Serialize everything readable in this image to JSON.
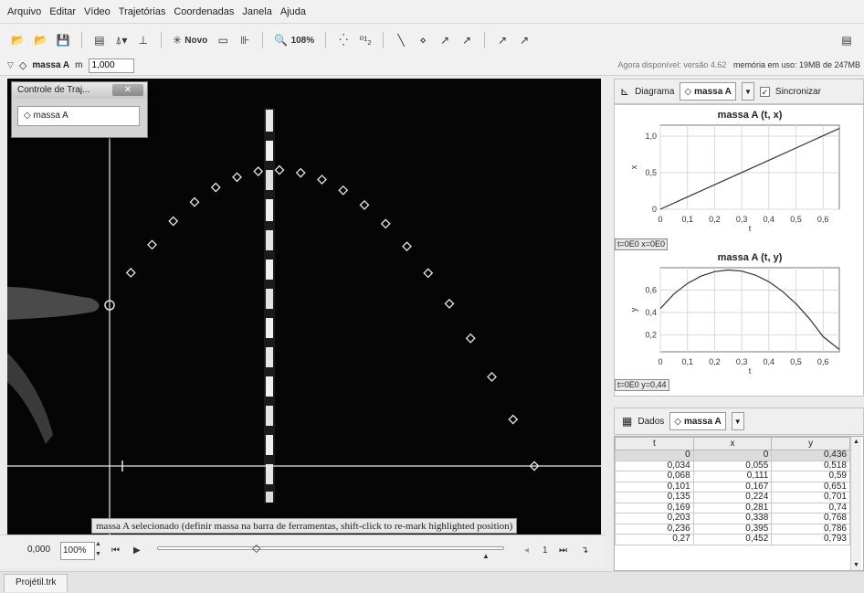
{
  "menu": [
    "Arquivo",
    "Editar",
    "Vídeo",
    "Trajetórias",
    "Coordenadas",
    "Janela",
    "Ajuda"
  ],
  "toolbar": {
    "new_label": "Novo",
    "zoom_label": "108%"
  },
  "trackbar": {
    "track_name": "massa A",
    "mass_label": "m",
    "mass_value": "1,000",
    "version_text": "Agora disponível: versão 4.62",
    "memory_text": "memória em uso: 19MB de 247MB"
  },
  "track_control": {
    "title": "Controle de Traj...",
    "track_button": "massa A"
  },
  "status_message": "massa A selecionado (definir massa na barra de ferramentas, shift-click to re-mark highlighted position)",
  "player": {
    "time": "0,000",
    "zoom": "100%",
    "step": "1",
    "step_fraction": 0.29
  },
  "chart_panel": {
    "label": "Diagrama",
    "track": "massa A",
    "sync_label": "Sincronizar"
  },
  "chart_data": [
    {
      "type": "line",
      "title": "massa A (t, x)",
      "xlabel": "t",
      "ylabel": "x",
      "xlim": [
        0,
        0.66
      ],
      "ylim": [
        0,
        1.15
      ],
      "xticks": [
        "0",
        "0,1",
        "0,2",
        "0,3",
        "0,4",
        "0,5",
        "0,6"
      ],
      "yticks": [
        "0",
        "0,5",
        "1,0"
      ],
      "ytick_values": [
        0,
        0.5,
        1.0
      ],
      "grid": true,
      "x": [
        0,
        0.1,
        0.2,
        0.3,
        0.4,
        0.5,
        0.6,
        0.66
      ],
      "y": [
        0,
        0.167,
        0.335,
        0.502,
        0.67,
        0.838,
        1.005,
        1.105
      ],
      "readout": "t=0E0  x=0E0"
    },
    {
      "type": "line",
      "title": "massa A (t, y)",
      "xlabel": "t",
      "ylabel": "y",
      "xlim": [
        0,
        0.66
      ],
      "ylim": [
        0.05,
        0.8
      ],
      "xticks": [
        "0",
        "0,1",
        "0,2",
        "0,3",
        "0,4",
        "0,5",
        "0,6"
      ],
      "yticks": [
        "0,2",
        "0,4",
        "0,6"
      ],
      "ytick_values": [
        0.2,
        0.4,
        0.6
      ],
      "grid": true,
      "x": [
        0,
        0.05,
        0.1,
        0.15,
        0.2,
        0.25,
        0.3,
        0.35,
        0.4,
        0.45,
        0.5,
        0.55,
        0.6,
        0.66
      ],
      "y": [
        0.436,
        0.565,
        0.66,
        0.725,
        0.765,
        0.78,
        0.77,
        0.735,
        0.675,
        0.59,
        0.48,
        0.345,
        0.185,
        0.07
      ],
      "readout": "t=0E0  y=0,44"
    }
  ],
  "data_panel": {
    "label": "Dados",
    "track": "massa A",
    "columns": [
      "t",
      "x",
      "y"
    ],
    "rows": [
      [
        "0",
        "0",
        "0,436"
      ],
      [
        "0,034",
        "0,055",
        "0,518"
      ],
      [
        "0,068",
        "0,111",
        "0,59"
      ],
      [
        "0,101",
        "0,167",
        "0,651"
      ],
      [
        "0,135",
        "0,224",
        "0,701"
      ],
      [
        "0,169",
        "0,281",
        "0,74"
      ],
      [
        "0,203",
        "0,338",
        "0,768"
      ],
      [
        "0,236",
        "0,395",
        "0,786"
      ],
      [
        "0,27",
        "0,452",
        "0,793"
      ]
    ]
  },
  "file_tab": "Projétil.trk"
}
